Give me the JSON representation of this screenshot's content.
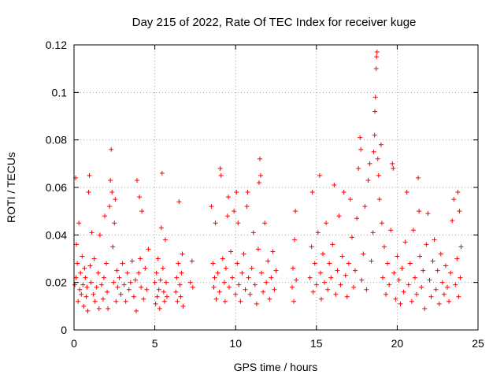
{
  "chart_data": {
    "type": "scatter",
    "title": "Day 215 of 2022, Rate Of TEC Index for receiver kuge",
    "xlabel": "GPS time / hours",
    "ylabel": "ROTI / TECUs",
    "xlim": [
      0,
      25
    ],
    "ylim": [
      0,
      0.12
    ],
    "x_ticks": [
      "0",
      "5",
      "10",
      "15",
      "20",
      "25"
    ],
    "y_ticks": [
      "0",
      "0.02",
      "0.04",
      "0.06",
      "0.08",
      "0.1",
      "0.12"
    ],
    "grid": true,
    "legend": "none",
    "marker": "plus",
    "series": [
      {
        "color": "#ff0000",
        "points": [
          [
            0.05,
            0.019
          ],
          [
            0.1,
            0.064
          ],
          [
            0.12,
            0.022
          ],
          [
            0.15,
            0.036
          ],
          [
            0.2,
            0.028
          ],
          [
            0.25,
            0.012
          ],
          [
            0.3,
            0.045
          ],
          [
            0.35,
            0.017
          ],
          [
            0.4,
            0.024
          ],
          [
            0.45,
            0.015
          ],
          [
            0.5,
            0.031
          ],
          [
            0.55,
            0.019
          ],
          [
            0.6,
            0.01
          ],
          [
            0.65,
            0.026
          ],
          [
            0.7,
            0.022
          ],
          [
            0.75,
            0.014
          ],
          [
            0.8,
            0.018
          ],
          [
            0.85,
            0.008
          ],
          [
            0.9,
            0.058
          ],
          [
            0.95,
            0.065
          ],
          [
            1.0,
            0.027
          ],
          [
            1.05,
            0.02
          ],
          [
            1.1,
            0.041
          ],
          [
            1.2,
            0.015
          ],
          [
            1.25,
            0.03
          ],
          [
            1.3,
            0.012
          ],
          [
            1.4,
            0.018
          ],
          [
            1.5,
            0.024
          ],
          [
            1.55,
            0.009
          ],
          [
            1.6,
            0.04
          ],
          [
            1.7,
            0.019
          ],
          [
            1.8,
            0.013
          ],
          [
            1.85,
            0.022
          ],
          [
            1.9,
            0.048
          ],
          [
            2.0,
            0.028
          ],
          [
            2.05,
            0.016
          ],
          [
            2.1,
            0.009
          ],
          [
            2.2,
            0.052
          ],
          [
            2.25,
            0.063
          ],
          [
            2.3,
            0.076
          ],
          [
            2.35,
            0.058
          ],
          [
            2.4,
            0.035
          ],
          [
            2.45,
            0.02
          ],
          [
            2.5,
            0.045
          ],
          [
            2.55,
            0.055
          ],
          [
            2.6,
            0.012
          ],
          [
            2.65,
            0.025
          ],
          [
            2.7,
            0.018
          ],
          [
            2.8,
            0.022
          ],
          [
            2.9,
            0.015
          ],
          [
            3.0,
            0.028
          ],
          [
            3.1,
            0.019
          ],
          [
            3.2,
            0.012
          ],
          [
            3.3,
            0.024
          ],
          [
            3.4,
            0.017
          ],
          [
            3.5,
            0.02
          ],
          [
            3.6,
            0.029
          ],
          [
            3.7,
            0.014
          ],
          [
            3.8,
            0.021
          ],
          [
            3.85,
            0.008
          ],
          [
            3.9,
            0.063
          ],
          [
            4.0,
            0.024
          ],
          [
            4.05,
            0.056
          ],
          [
            4.1,
            0.03
          ],
          [
            4.15,
            0.018
          ],
          [
            4.2,
            0.05
          ],
          [
            4.3,
            0.013
          ],
          [
            4.4,
            0.026
          ],
          [
            4.5,
            0.017
          ],
          [
            4.6,
            0.034
          ],
          [
            5.0,
            0.02
          ],
          [
            5.05,
            0.011
          ],
          [
            5.1,
            0.024
          ],
          [
            5.15,
            0.014
          ],
          [
            5.2,
            0.03
          ],
          [
            5.25,
            0.017
          ],
          [
            5.3,
            0.009
          ],
          [
            5.35,
            0.021
          ],
          [
            5.4,
            0.043
          ],
          [
            5.45,
            0.066
          ],
          [
            5.5,
            0.026
          ],
          [
            5.55,
            0.016
          ],
          [
            5.6,
            0.012
          ],
          [
            5.65,
            0.038
          ],
          [
            5.7,
            0.02
          ],
          [
            5.75,
            0.014
          ],
          [
            6.3,
            0.016
          ],
          [
            6.35,
            0.022
          ],
          [
            6.4,
            0.012
          ],
          [
            6.45,
            0.028
          ],
          [
            6.5,
            0.054
          ],
          [
            6.55,
            0.019
          ],
          [
            6.6,
            0.014
          ],
          [
            6.65,
            0.024
          ],
          [
            6.7,
            0.032
          ],
          [
            6.75,
            0.01
          ],
          [
            7.2,
            0.02
          ],
          [
            7.3,
            0.029
          ],
          [
            7.35,
            0.018
          ],
          [
            8.5,
            0.052
          ],
          [
            8.6,
            0.028
          ],
          [
            8.65,
            0.018
          ],
          [
            8.7,
            0.022
          ],
          [
            8.75,
            0.045
          ],
          [
            8.8,
            0.013
          ],
          [
            8.9,
            0.024
          ],
          [
            9.0,
            0.016
          ],
          [
            9.05,
            0.068
          ],
          [
            9.1,
            0.065
          ],
          [
            9.2,
            0.03
          ],
          [
            9.3,
            0.02
          ],
          [
            9.35,
            0.012
          ],
          [
            9.4,
            0.026
          ],
          [
            9.5,
            0.048
          ],
          [
            9.55,
            0.056
          ],
          [
            9.6,
            0.018
          ],
          [
            9.7,
            0.033
          ],
          [
            9.8,
            0.022
          ],
          [
            9.9,
            0.05
          ],
          [
            10.0,
            0.015
          ],
          [
            10.05,
            0.058
          ],
          [
            10.1,
            0.028
          ],
          [
            10.15,
            0.045
          ],
          [
            10.2,
            0.019
          ],
          [
            10.3,
            0.012
          ],
          [
            10.4,
            0.024
          ],
          [
            10.5,
            0.032
          ],
          [
            10.6,
            0.017
          ],
          [
            10.7,
            0.052
          ],
          [
            10.75,
            0.058
          ],
          [
            10.8,
            0.022
          ],
          [
            10.9,
            0.015
          ],
          [
            11.0,
            0.026
          ],
          [
            11.1,
            0.041
          ],
          [
            11.2,
            0.019
          ],
          [
            11.3,
            0.011
          ],
          [
            11.4,
            0.034
          ],
          [
            11.45,
            0.062
          ],
          [
            11.5,
            0.072
          ],
          [
            11.55,
            0.065
          ],
          [
            11.6,
            0.024
          ],
          [
            11.7,
            0.016
          ],
          [
            11.8,
            0.045
          ],
          [
            11.9,
            0.02
          ],
          [
            12.0,
            0.029
          ],
          [
            12.1,
            0.013
          ],
          [
            12.2,
            0.022
          ],
          [
            12.3,
            0.033
          ],
          [
            12.4,
            0.017
          ],
          [
            12.5,
            0.025
          ],
          [
            13.5,
            0.018
          ],
          [
            13.55,
            0.026
          ],
          [
            13.6,
            0.012
          ],
          [
            13.65,
            0.038
          ],
          [
            13.7,
            0.05
          ],
          [
            13.75,
            0.021
          ],
          [
            14.6,
            0.022
          ],
          [
            14.7,
            0.035
          ],
          [
            14.75,
            0.058
          ],
          [
            14.8,
            0.016
          ],
          [
            14.9,
            0.028
          ],
          [
            15.0,
            0.019
          ],
          [
            15.1,
            0.041
          ],
          [
            15.2,
            0.065
          ],
          [
            15.25,
            0.024
          ],
          [
            15.3,
            0.013
          ],
          [
            15.4,
            0.032
          ],
          [
            15.5,
            0.02
          ],
          [
            15.6,
            0.045
          ],
          [
            15.7,
            0.017
          ],
          [
            15.8,
            0.028
          ],
          [
            15.9,
            0.022
          ],
          [
            16.0,
            0.036
          ],
          [
            16.1,
            0.061
          ],
          [
            16.2,
            0.015
          ],
          [
            16.3,
            0.025
          ],
          [
            16.4,
            0.048
          ],
          [
            16.5,
            0.019
          ],
          [
            16.6,
            0.031
          ],
          [
            16.7,
            0.058
          ],
          [
            16.8,
            0.023
          ],
          [
            16.9,
            0.014
          ],
          [
            17.0,
            0.028
          ],
          [
            17.1,
            0.055
          ],
          [
            17.2,
            0.039
          ],
          [
            17.3,
            0.018
          ],
          [
            17.4,
            0.025
          ],
          [
            17.5,
            0.047
          ],
          [
            17.6,
            0.068
          ],
          [
            17.7,
            0.081
          ],
          [
            17.75,
            0.076
          ],
          [
            17.8,
            0.021
          ],
          [
            17.9,
            0.032
          ],
          [
            18.0,
            0.052
          ],
          [
            18.1,
            0.017
          ],
          [
            18.2,
            0.063
          ],
          [
            18.3,
            0.07
          ],
          [
            18.4,
            0.029
          ],
          [
            18.5,
            0.041
          ],
          [
            18.55,
            0.075
          ],
          [
            18.6,
            0.082
          ],
          [
            18.62,
            0.092
          ],
          [
            18.65,
            0.098
          ],
          [
            18.7,
            0.11
          ],
          [
            18.72,
            0.115
          ],
          [
            18.75,
            0.117
          ],
          [
            18.8,
            0.072
          ],
          [
            18.85,
            0.065
          ],
          [
            18.9,
            0.055
          ],
          [
            19.0,
            0.078
          ],
          [
            19.05,
            0.045
          ],
          [
            19.1,
            0.022
          ],
          [
            19.2,
            0.035
          ],
          [
            19.3,
            0.015
          ],
          [
            19.4,
            0.028
          ],
          [
            19.5,
            0.019
          ],
          [
            19.6,
            0.042
          ],
          [
            19.7,
            0.07
          ],
          [
            19.75,
            0.068
          ],
          [
            19.8,
            0.024
          ],
          [
            19.9,
            0.013
          ],
          [
            20.0,
            0.031
          ],
          [
            20.1,
            0.021
          ],
          [
            20.2,
            0.011
          ],
          [
            20.3,
            0.026
          ],
          [
            20.4,
            0.016
          ],
          [
            20.5,
            0.037
          ],
          [
            20.6,
            0.058
          ],
          [
            20.7,
            0.019
          ],
          [
            20.8,
            0.028
          ],
          [
            20.9,
            0.012
          ],
          [
            21.0,
            0.042
          ],
          [
            21.1,
            0.022
          ],
          [
            21.2,
            0.015
          ],
          [
            21.3,
            0.064
          ],
          [
            21.35,
            0.05
          ],
          [
            21.4,
            0.031
          ],
          [
            21.5,
            0.018
          ],
          [
            21.6,
            0.025
          ],
          [
            21.7,
            0.009
          ],
          [
            21.8,
            0.036
          ],
          [
            21.9,
            0.049
          ],
          [
            22.0,
            0.021
          ],
          [
            22.1,
            0.014
          ],
          [
            22.2,
            0.029
          ],
          [
            22.3,
            0.038
          ],
          [
            22.4,
            0.017
          ],
          [
            22.5,
            0.025
          ],
          [
            22.6,
            0.011
          ],
          [
            22.7,
            0.032
          ],
          [
            22.8,
            0.02
          ],
          [
            22.9,
            0.015
          ],
          [
            23.0,
            0.027
          ],
          [
            23.1,
            0.018
          ],
          [
            23.2,
            0.012
          ],
          [
            23.3,
            0.024
          ],
          [
            23.4,
            0.046
          ],
          [
            23.5,
            0.055
          ],
          [
            23.6,
            0.019
          ],
          [
            23.7,
            0.03
          ],
          [
            23.75,
            0.058
          ],
          [
            23.8,
            0.014
          ],
          [
            23.85,
            0.05
          ],
          [
            23.9,
            0.022
          ],
          [
            23.95,
            0.035
          ]
        ]
      }
    ]
  }
}
